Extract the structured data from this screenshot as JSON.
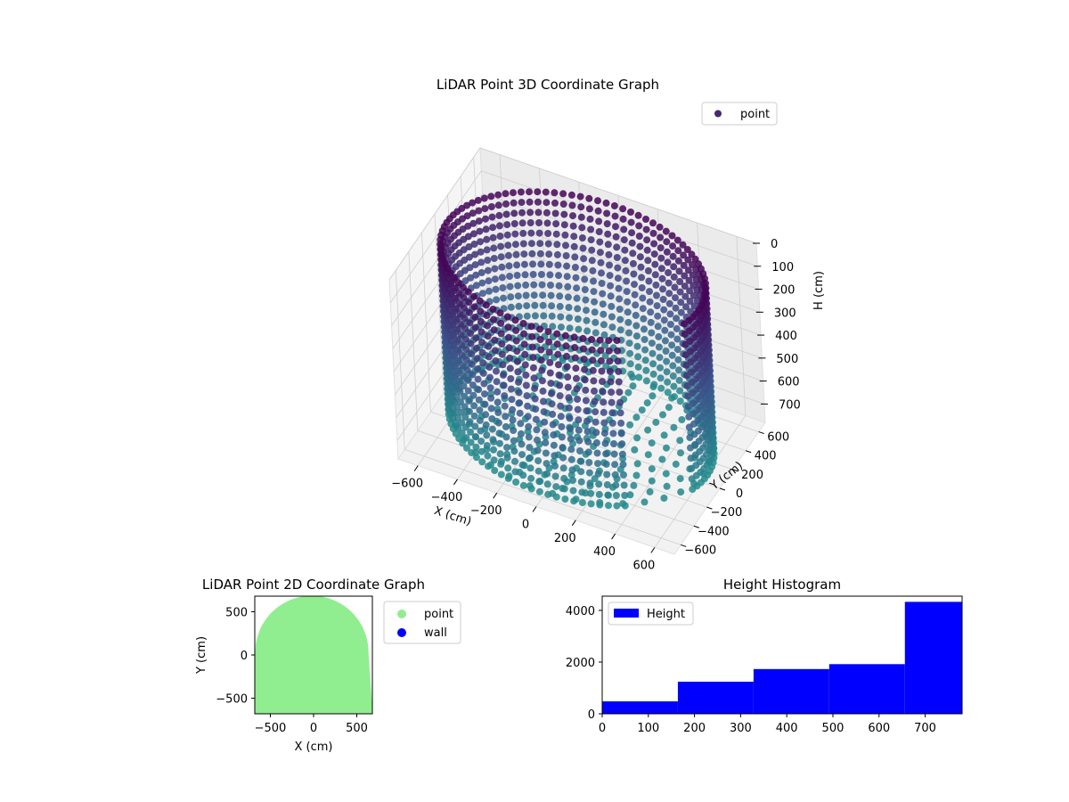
{
  "chart_data": [
    {
      "type": "scatter",
      "projection": "3d",
      "title": "LiDAR Point 3D Coordinate Graph",
      "xlabel": "X (cm)",
      "ylabel": "Y (cm)",
      "zlabel": "H (cm)",
      "xlim": [
        -700,
        700
      ],
      "ylim": [
        -700,
        700
      ],
      "zlim": [
        780,
        0
      ],
      "zaxis_inverted": true,
      "xticks": [
        -600,
        -400,
        -200,
        0,
        200,
        400,
        600
      ],
      "yticks": [
        -600,
        -400,
        -200,
        0,
        200,
        400,
        600
      ],
      "zticks": [
        0,
        100,
        200,
        300,
        400,
        500,
        600,
        700
      ],
      "colormap": "viridis",
      "grid": true,
      "legend": {
        "entries": [
          "point"
        ],
        "placement": "upper-right"
      },
      "series": [
        {
          "name": "point",
          "color": "#46296f",
          "description_shape": "ring of points at radius ~650 cm spanning heights 0 to ~780 cm, dense floor near 700-780 cm"
        }
      ]
    },
    {
      "type": "scatter",
      "title": "LiDAR Point 2D Coordinate Graph",
      "xlabel": "X (cm)",
      "ylabel": "Y (cm)",
      "xlim": [
        -680,
        680
      ],
      "ylim": [
        -680,
        680
      ],
      "xticks": [
        -500,
        0,
        500
      ],
      "yticks": [
        -500,
        0,
        500
      ],
      "legend": {
        "entries": [
          "point",
          "wall"
        ],
        "placement": "outside-right"
      },
      "series": [
        {
          "name": "point",
          "color": "#90ee90"
        },
        {
          "name": "wall",
          "color": "#0000ff"
        }
      ]
    },
    {
      "type": "bar",
      "subtype": "histogram",
      "title": "Height Histogram",
      "xlabel": "",
      "ylabel": "",
      "xlim": [
        0,
        780
      ],
      "ylim": [
        0,
        4550
      ],
      "xticks": [
        0,
        100,
        200,
        300,
        400,
        500,
        600,
        700
      ],
      "yticks": [
        0,
        2000,
        4000
      ],
      "bin_edges": [
        0,
        164,
        328,
        492,
        656,
        780
      ],
      "values": [
        480,
        1240,
        1730,
        1920,
        4330
      ],
      "legend": {
        "entries": [
          "Height"
        ],
        "placement": "upper-left"
      },
      "series": [
        {
          "name": "Height",
          "color": "#0000ff"
        }
      ]
    }
  ]
}
